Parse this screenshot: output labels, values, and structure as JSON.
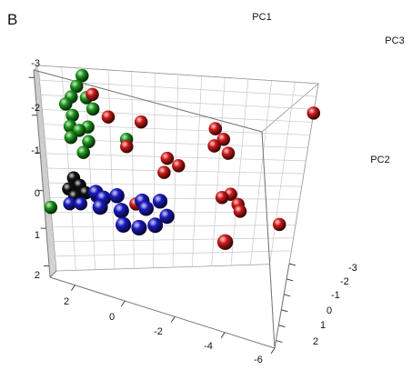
{
  "panel_label": "B",
  "chart_data": {
    "type": "scatter",
    "title": "",
    "panel": "B",
    "axes": {
      "PC1": {
        "label": "PC1",
        "range": [
          -6,
          3
        ],
        "ticks": [
          "2",
          "0",
          "-2",
          "-4",
          "-6"
        ]
      },
      "PC2": {
        "label": "PC2",
        "range": [
          -3.2,
          2.3
        ],
        "ticks": [
          "-3",
          "-2",
          "-1",
          "0",
          "1",
          "2"
        ]
      },
      "PC3": {
        "label": "PC3",
        "range": [
          -3,
          2.5
        ],
        "ticks": [
          "-3",
          "-2",
          "-1",
          "0",
          "1",
          "2"
        ]
      }
    },
    "grid": true,
    "legend": "none",
    "series": [
      {
        "color": "#1f9a1f",
        "points": [
          [
            1.6,
            -3.0,
            -3.0
          ],
          [
            1.8,
            -2.7,
            -3.0
          ],
          [
            2.0,
            -2.4,
            -3.0
          ],
          [
            1.5,
            -2.4,
            -3.0
          ],
          [
            2.2,
            -2.2,
            -3.0
          ],
          [
            1.3,
            -2.1,
            -3.0
          ],
          [
            2.0,
            -1.9,
            -3.0
          ],
          [
            2.1,
            -1.6,
            -3.0
          ],
          [
            1.5,
            -1.6,
            -3.0
          ],
          [
            1.8,
            -1.5,
            -3.0
          ],
          [
            2.1,
            -1.3,
            -3.0
          ],
          [
            1.5,
            -1.2,
            -3.0
          ],
          [
            1.7,
            -0.9,
            -3.0
          ],
          [
            0.2,
            -1.3,
            -3.0
          ],
          [
            3.0,
            0.6,
            -3.0
          ]
        ]
      },
      {
        "color": "#d41b1b",
        "points": [
          [
            1.3,
            -2.5,
            -3.0
          ],
          [
            0.8,
            -1.9,
            -3.0
          ],
          [
            -0.3,
            -1.8,
            -3.0
          ],
          [
            0.2,
            -1.1,
            -3.0
          ],
          [
            -2.8,
            -1.7,
            -3.0
          ],
          [
            -3.1,
            -1.4,
            -3.0
          ],
          [
            -2.8,
            -1.2,
            -3.0
          ],
          [
            -3.3,
            -1.0,
            -3.0
          ],
          [
            -1.2,
            -0.8,
            -3.0
          ],
          [
            -1.6,
            -0.6,
            -3.0
          ],
          [
            -1.1,
            -0.4,
            -3.0
          ],
          [
            -3.5,
            0.2,
            -3.0
          ],
          [
            -3.2,
            0.3,
            -3.0
          ],
          [
            -3.8,
            0.5,
            -3.0
          ],
          [
            -3.9,
            0.7,
            -3.0
          ],
          [
            -0.1,
            0.5,
            -3.0
          ],
          [
            -6.0,
            -2.3,
            -3.0
          ],
          [
            -5.4,
            1.1,
            -3.0
          ],
          [
            -4.0,
            0.3,
            1.3
          ]
        ]
      },
      {
        "color": "#121212",
        "points": [
          [
            2.1,
            -0.2,
            -3.0
          ],
          [
            1.9,
            0.0,
            -3.0
          ],
          [
            2.3,
            0.1,
            -3.0
          ],
          [
            1.7,
            0.2,
            -3.0
          ],
          [
            2.1,
            0.3,
            -3.0
          ]
        ]
      },
      {
        "color": "#1b1bc4",
        "points": [
          [
            2.3,
            0.5,
            -3.0
          ],
          [
            1.9,
            0.5,
            -3.0
          ],
          [
            1.3,
            0.3,
            -3.0
          ],
          [
            1.1,
            -0.1,
            0.0
          ],
          [
            0.8,
            0.0,
            0.2
          ],
          [
            0.3,
            -0.1,
            0.0
          ],
          [
            -0.6,
            0.0,
            -0.4
          ],
          [
            0.9,
            0.2,
            0.7
          ],
          [
            0.1,
            0.2,
            0.6
          ],
          [
            -0.8,
            0.1,
            0.1
          ],
          [
            -1.3,
            -0.1,
            -0.2
          ],
          [
            0.0,
            0.5,
            1.1
          ],
          [
            -0.6,
            0.5,
            1.0
          ],
          [
            -1.2,
            0.4,
            0.7
          ],
          [
            -1.6,
            0.2,
            0.2
          ]
        ]
      }
    ]
  }
}
